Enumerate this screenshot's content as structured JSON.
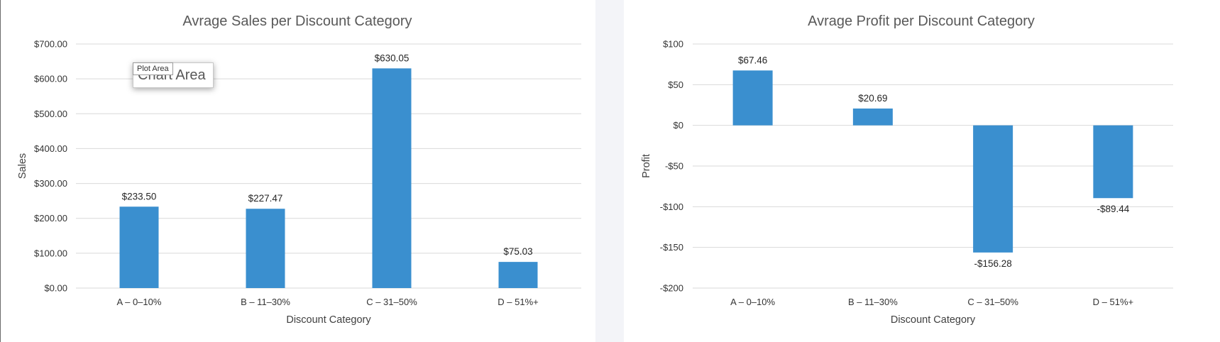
{
  "tooltips": {
    "main": "Chart Area",
    "small": "Plot Area"
  },
  "chart_data": [
    {
      "type": "bar",
      "title": "Avrage Sales per Discount Category",
      "xlabel": "Discount Category",
      "ylabel": "Sales",
      "categories": [
        "A – 0–10%",
        "B – 11–30%",
        "C – 31–50%",
        "D – 51%+"
      ],
      "values": [
        233.5,
        227.47,
        630.05,
        75.03
      ],
      "data_labels": [
        "$233.50",
        "$227.47",
        "$630.05",
        "$75.03"
      ],
      "ylim": [
        0,
        700
      ],
      "yticks": [
        0,
        100,
        200,
        300,
        400,
        500,
        600,
        700
      ],
      "ytick_labels": [
        "$0.00",
        "$100.00",
        "$200.00",
        "$300.00",
        "$400.00",
        "$500.00",
        "$600.00",
        "$700.00"
      ],
      "grid": true,
      "color": "#3a8fcf"
    },
    {
      "type": "bar",
      "title": "Avrage Profit per Discount Category",
      "xlabel": "Discount Category",
      "ylabel": "Profit",
      "categories": [
        "A – 0–10%",
        "B – 11–30%",
        "C – 31–50%",
        "D – 51%+"
      ],
      "values": [
        67.46,
        20.69,
        -156.28,
        -89.44
      ],
      "data_labels": [
        "$67.46",
        "$20.69",
        "-$156.28",
        "-$89.44"
      ],
      "ylim": [
        -200,
        100
      ],
      "yticks": [
        -200,
        -150,
        -100,
        -50,
        0,
        50,
        100
      ],
      "ytick_labels": [
        "-$200",
        "-$150",
        "-$100",
        "-$50",
        "$0",
        "$50",
        "$100"
      ],
      "grid": true,
      "color": "#3a8fcf"
    }
  ]
}
